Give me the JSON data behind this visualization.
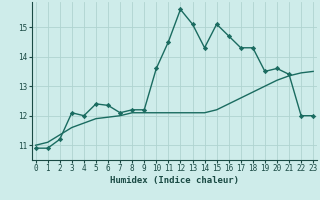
{
  "xlabel": "Humidex (Indice chaleur)",
  "bg_color": "#ceecea",
  "grid_color": "#afd4d0",
  "line_color": "#1a6b60",
  "curve1_x": [
    0,
    1,
    2,
    3,
    4,
    5,
    6,
    7,
    8,
    9,
    10,
    11,
    12,
    13,
    14,
    15,
    16,
    17,
    18,
    19,
    20,
    21,
    22,
    23
  ],
  "curve1_y": [
    10.9,
    10.9,
    11.2,
    12.1,
    12.0,
    12.4,
    12.35,
    12.1,
    12.2,
    12.2,
    13.6,
    14.5,
    15.6,
    15.1,
    14.3,
    15.1,
    14.7,
    14.3,
    14.3,
    13.5,
    13.6,
    13.4,
    12.0,
    12.0
  ],
  "curve2_x": [
    0,
    1,
    2,
    3,
    4,
    5,
    6,
    7,
    8,
    9,
    10,
    11,
    12,
    13,
    14,
    15,
    16,
    17,
    18,
    19,
    20,
    21,
    22,
    23
  ],
  "curve2_y": [
    11.0,
    11.1,
    11.35,
    11.6,
    11.75,
    11.9,
    11.95,
    12.0,
    12.1,
    12.1,
    12.1,
    12.1,
    12.1,
    12.1,
    12.1,
    12.2,
    12.4,
    12.6,
    12.8,
    13.0,
    13.2,
    13.35,
    13.45,
    13.5
  ],
  "ylim": [
    10.5,
    15.85
  ],
  "yticks": [
    11,
    12,
    13,
    14,
    15
  ],
  "xticks": [
    0,
    1,
    2,
    3,
    4,
    5,
    6,
    7,
    8,
    9,
    10,
    11,
    12,
    13,
    14,
    15,
    16,
    17,
    18,
    19,
    20,
    21,
    22,
    23
  ],
  "marker": "D",
  "marker_size": 2.2,
  "linewidth": 1.0,
  "font_color": "#1a4a44",
  "tick_fontsize": 5.5,
  "xlabel_fontsize": 6.5
}
